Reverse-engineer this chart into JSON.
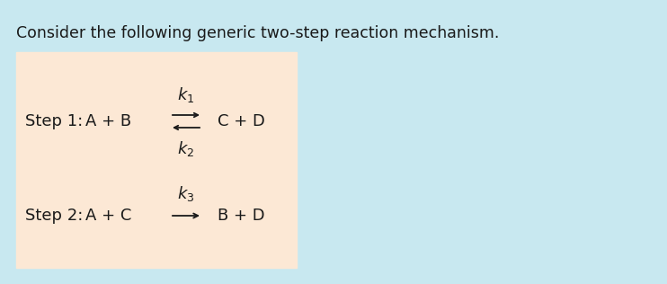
{
  "title": "Consider the following generic two-step reaction mechanism.",
  "title_fontsize": 12.5,
  "title_color": "#2a2a2a",
  "bg_color": "#c8e8f0",
  "box_color": "#fce8d5",
  "text_color": "#1a1a1a",
  "text_fontsize": 13,
  "step1_label": "Step 1:",
  "step1_reactants": "A + B",
  "step1_products": "C + D",
  "step1_k1": "$k_1$",
  "step1_k2": "$k_2$",
  "step2_label": "Step 2:",
  "step2_reactants": "A + C",
  "step2_products": "B + D",
  "step2_k3": "$k_3$"
}
